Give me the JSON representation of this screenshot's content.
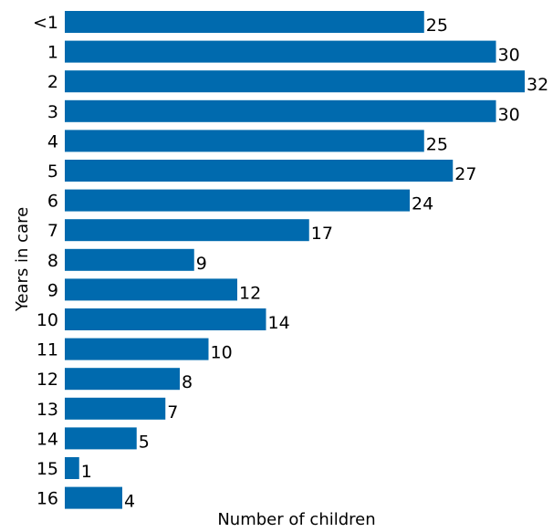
{
  "chart_data": {
    "type": "bar",
    "orientation": "horizontal",
    "categories": [
      "<1",
      "1",
      "2",
      "3",
      "4",
      "5",
      "6",
      "7",
      "8",
      "9",
      "10",
      "11",
      "12",
      "13",
      "14",
      "15",
      "16"
    ],
    "values": [
      25,
      30,
      32,
      30,
      25,
      27,
      24,
      17,
      9,
      12,
      14,
      10,
      8,
      7,
      5,
      1,
      4
    ],
    "title": "",
    "xlabel": "Number of children",
    "ylabel": "Years in care",
    "xlim": [
      0,
      32
    ],
    "grid": false,
    "legend": "none",
    "data_labels": true,
    "colors": {
      "bar": "#006AAE",
      "text": "#000000"
    }
  }
}
